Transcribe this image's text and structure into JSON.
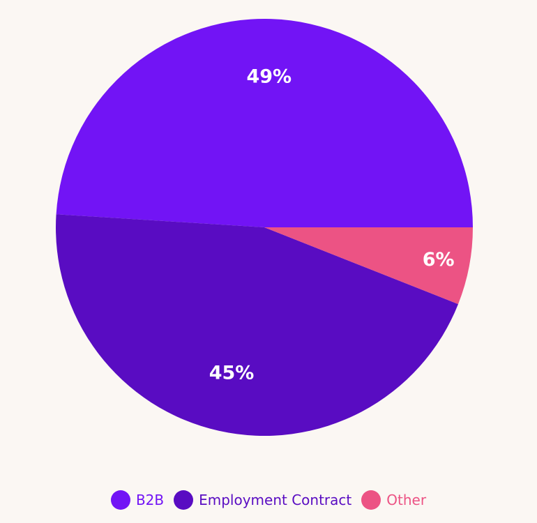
{
  "chart_data": {
    "type": "pie",
    "title": "",
    "categories": [
      "B2B",
      "Employment Contract",
      "Other"
    ],
    "values": [
      49,
      45,
      6
    ],
    "labels": [
      "49%",
      "45%",
      "6%"
    ],
    "colors": [
      "#7214f5",
      "#590cc2",
      "#ec5384"
    ],
    "legend": "bottom",
    "start_angle_deg": 0,
    "direction": "counterclockwise"
  },
  "legend": {
    "items": [
      {
        "label": "B2B",
        "color": "#7214f5"
      },
      {
        "label": "Employment Contract",
        "color": "#590cc2"
      },
      {
        "label": "Other",
        "color": "#ec5384"
      }
    ]
  }
}
